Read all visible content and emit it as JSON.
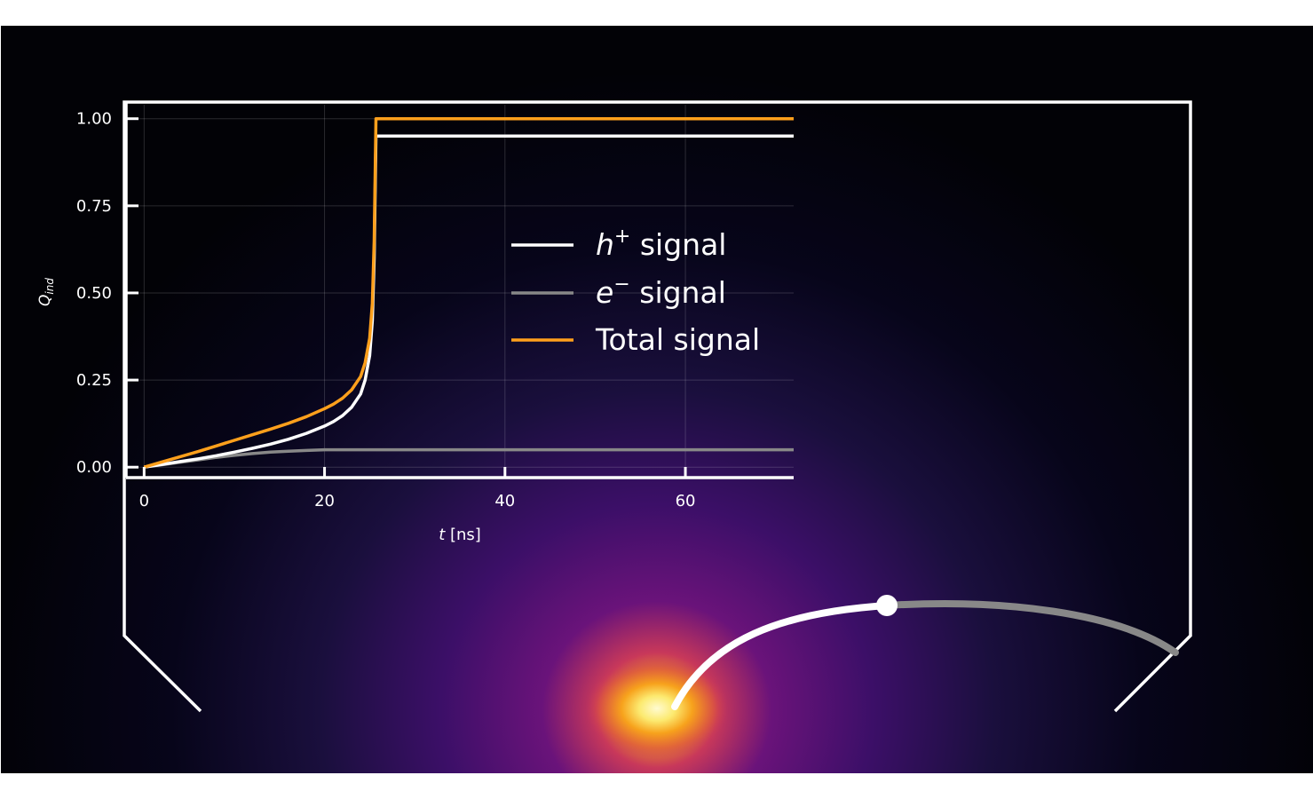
{
  "chart_data": {
    "type": "line",
    "xlabel_var": "t",
    "xlabel_unit": " [ns]",
    "ylabel_main": "Q",
    "ylabel_sub": "ind",
    "xlim": [
      -2,
      72
    ],
    "ylim": [
      -0.03,
      1.04
    ],
    "xticks": [
      0,
      20,
      40,
      60
    ],
    "yticks": [
      0.0,
      0.25,
      0.5,
      0.75,
      1.0
    ],
    "xtick_labels": [
      "0",
      "20",
      "40",
      "60"
    ],
    "ytick_labels": [
      "0.00",
      "0.25",
      "0.50",
      "0.75",
      "1.00"
    ],
    "grid": true,
    "legend_position": "center-right",
    "series": [
      {
        "name_var": "h",
        "name_sup": "+",
        "name_text": "signal",
        "color": "#ffffff",
        "points": [
          [
            0,
            0
          ],
          [
            2,
            0.008
          ],
          [
            4,
            0.016
          ],
          [
            6,
            0.024
          ],
          [
            8,
            0.033
          ],
          [
            10,
            0.043
          ],
          [
            12,
            0.054
          ],
          [
            14,
            0.066
          ],
          [
            16,
            0.08
          ],
          [
            18,
            0.097
          ],
          [
            20,
            0.118
          ],
          [
            21,
            0.131
          ],
          [
            22,
            0.148
          ],
          [
            23,
            0.172
          ],
          [
            24,
            0.21
          ],
          [
            24.5,
            0.25
          ],
          [
            25,
            0.32
          ],
          [
            25.3,
            0.42
          ],
          [
            25.5,
            0.6
          ],
          [
            25.7,
            0.95
          ],
          [
            72,
            0.95
          ]
        ]
      },
      {
        "name_var": "e",
        "name_sup": "−",
        "name_text": "signal",
        "color": "#888888",
        "points": [
          [
            0,
            0
          ],
          [
            2,
            0.007
          ],
          [
            4,
            0.014
          ],
          [
            6,
            0.021
          ],
          [
            8,
            0.028
          ],
          [
            10,
            0.034
          ],
          [
            12,
            0.039
          ],
          [
            14,
            0.043
          ],
          [
            16,
            0.046
          ],
          [
            18,
            0.048
          ],
          [
            20,
            0.05
          ],
          [
            72,
            0.05
          ]
        ]
      },
      {
        "name": "Total signal",
        "color": "#ffa01c",
        "points": [
          [
            0,
            0
          ],
          [
            2,
            0.015
          ],
          [
            4,
            0.03
          ],
          [
            6,
            0.045
          ],
          [
            8,
            0.061
          ],
          [
            10,
            0.077
          ],
          [
            12,
            0.093
          ],
          [
            14,
            0.109
          ],
          [
            16,
            0.126
          ],
          [
            18,
            0.145
          ],
          [
            20,
            0.168
          ],
          [
            21,
            0.181
          ],
          [
            22,
            0.198
          ],
          [
            23,
            0.222
          ],
          [
            24,
            0.26
          ],
          [
            24.5,
            0.3
          ],
          [
            25,
            0.37
          ],
          [
            25.3,
            0.47
          ],
          [
            25.5,
            0.65
          ],
          [
            25.7,
            1.0
          ],
          [
            72,
            1.0
          ]
        ]
      }
    ]
  },
  "background": {
    "field_colors": [
      "#020206",
      "#1a0f3d",
      "#4a0f70",
      "#c8385a",
      "#f4a020",
      "#fcf0a0"
    ],
    "trajectory_colors": {
      "hole": "#ffffff",
      "electron": "#888888"
    }
  }
}
